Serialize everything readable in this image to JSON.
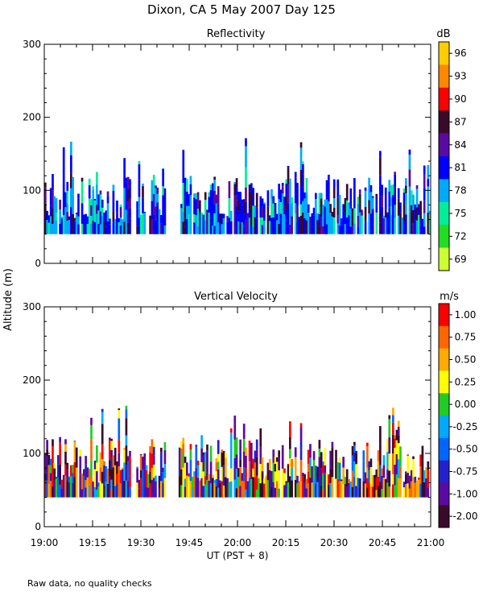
{
  "title": "Dixon, CA  5 May 2007  Day 125",
  "footnote": "Raw data, no quality checks",
  "chart_data": [
    {
      "type": "heatmap",
      "title": "Reflectivity",
      "ylabel": "Altitude (m)",
      "xlabel": "UT  (PST + 8)",
      "ylim": [
        0,
        300
      ],
      "yticks": [
        0,
        100,
        200,
        300
      ],
      "xlim_minutes": [
        0,
        120
      ],
      "xtick_labels": [
        "19:00",
        "19:15",
        "19:30",
        "19:45",
        "20:00",
        "20:15",
        "20:30",
        "20:45",
        "21:00"
      ],
      "colorbar": {
        "unit": "dB",
        "labels": [
          "96",
          "93",
          "90",
          "87",
          "84",
          "81",
          "78",
          "75",
          "72",
          "69"
        ],
        "colors": [
          "#ffcc00",
          "#ff8800",
          "#ff0000",
          "#3a0a2a",
          "#5a0aa0",
          "#0000ff",
          "#00aaff",
          "#00ee99",
          "#22dd22",
          "#ccff33"
        ]
      }
    },
    {
      "type": "heatmap",
      "title": "Vertical Velocity",
      "ylabel": "Altitude (m)",
      "xlabel": "UT  (PST + 8)",
      "ylim": [
        0,
        300
      ],
      "yticks": [
        0,
        100,
        200,
        300
      ],
      "xlim_minutes": [
        0,
        120
      ],
      "xtick_labels": [
        "19:00",
        "19:15",
        "19:30",
        "19:45",
        "20:00",
        "20:15",
        "20:30",
        "20:45",
        "21:00"
      ],
      "colorbar": {
        "unit": "m/s",
        "labels": [
          "1.00",
          "0.75",
          "0.50",
          "0.25",
          "0.00",
          "-0.25",
          "-0.50",
          "-0.75",
          "-1.00",
          "-2.00"
        ],
        "colors": [
          "#ff0000",
          "#ff6600",
          "#ffaa00",
          "#ffff00",
          "#22cc22",
          "#00aaff",
          "#0066ff",
          "#2222cc",
          "#5a0aa0",
          "#3a0a2a"
        ]
      }
    }
  ]
}
